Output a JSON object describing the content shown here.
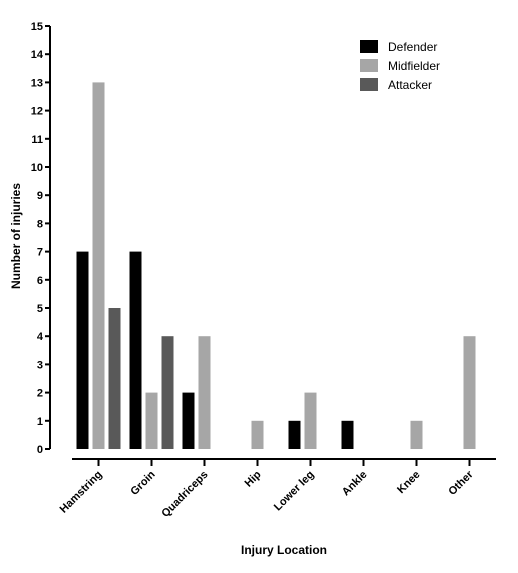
{
  "chart_data": {
    "type": "bar",
    "title": "",
    "xlabel": "Injury Location",
    "ylabel": "Number of injuries",
    "ylim": [
      0,
      15
    ],
    "yticks": [
      0,
      1,
      2,
      3,
      4,
      5,
      6,
      7,
      8,
      9,
      10,
      11,
      12,
      13,
      14,
      15
    ],
    "grid": false,
    "legend_position": "top-right",
    "categories": [
      "Hamstring",
      "Groin",
      "Quadriceps",
      "Hip",
      "Lower leg",
      "Ankle",
      "Knee",
      "Other"
    ],
    "series": [
      {
        "name": "Defender",
        "color": "#000000",
        "values": [
          7,
          7,
          2,
          0,
          1,
          1,
          0,
          0
        ]
      },
      {
        "name": "Midfielder",
        "color": "#a6a6a6",
        "values": [
          13,
          2,
          4,
          1,
          2,
          0,
          1,
          4
        ]
      },
      {
        "name": "Attacker",
        "color": "#595959",
        "values": [
          5,
          4,
          0,
          0,
          0,
          0,
          0,
          0
        ]
      }
    ]
  }
}
